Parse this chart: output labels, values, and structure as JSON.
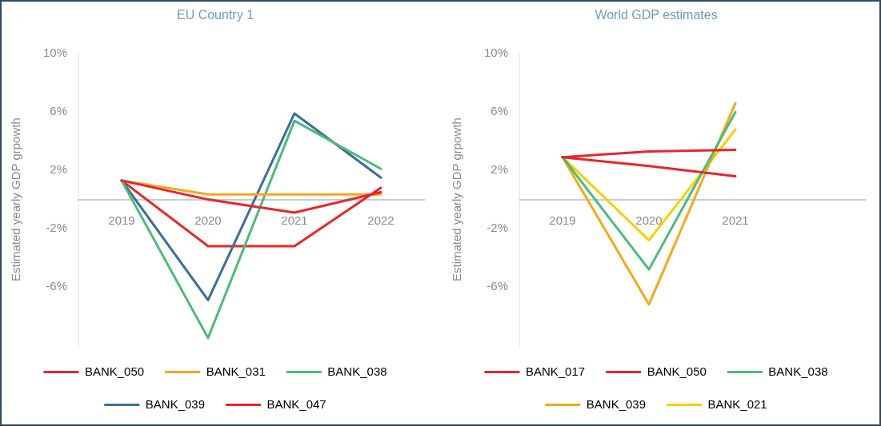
{
  "chart_data": [
    {
      "type": "line",
      "title": "EU Country 1",
      "ylabel": "Estimated yearly GDP grpowth",
      "categories": [
        "2019",
        "2020",
        "2021",
        "2022"
      ],
      "series": [
        {
          "name": "BANK_050",
          "color": "#e8262a",
          "values": [
            1.3,
            0,
            -0.9,
            0.5
          ]
        },
        {
          "name": "BANK_031",
          "color": "#f5a81c",
          "values": [
            1.3,
            0.35,
            0.35,
            0.35
          ]
        },
        {
          "name": "BANK_038",
          "color": "#4dbb7c",
          "values": [
            1.3,
            -9.5,
            5.4,
            2.1
          ]
        },
        {
          "name": "BANK_039",
          "color": "#3f6e95",
          "values": [
            1.3,
            -6.9,
            5.9,
            1.5
          ]
        },
        {
          "name": "BANK_047",
          "color": "#e8262a",
          "values": [
            1.3,
            -3.2,
            -3.2,
            0.8
          ]
        }
      ],
      "ylim": [
        -10,
        10
      ],
      "yticks": [
        {
          "value": 10,
          "label": "10%"
        },
        {
          "value": 6,
          "label": "6%"
        },
        {
          "value": 2,
          "label": "2%"
        },
        {
          "value": -2,
          "label": "-2%"
        },
        {
          "value": -6,
          "label": "-6%"
        }
      ],
      "grid": false,
      "legend": "bottom",
      "marker": "none",
      "line_style": "solid"
    },
    {
      "type": "line",
      "title": "World GDP estimates",
      "ylabel": "Estimated yearly GDP grpowth",
      "categories": [
        "2019",
        "2020",
        "2021",
        null
      ],
      "series": [
        {
          "name": "BANK_017",
          "color": "#e8262a",
          "values": [
            2.9,
            3.3,
            3.4,
            null
          ]
        },
        {
          "name": "BANK_050",
          "color": "#e8262a",
          "values": [
            2.9,
            2.3,
            1.6,
            null
          ]
        },
        {
          "name": "BANK_038",
          "color": "#4dbb7c",
          "values": [
            2.9,
            -4.8,
            6.0,
            null
          ]
        },
        {
          "name": "BANK_039",
          "color": "#f5a81c",
          "values": [
            2.9,
            -7.2,
            6.6,
            null
          ]
        },
        {
          "name": "BANK_021",
          "color": "#f8d000",
          "values": [
            2.9,
            -2.8,
            4.8,
            null
          ]
        }
      ],
      "ylim": [
        -10,
        10
      ],
      "yticks": [
        {
          "value": 10,
          "label": "10%"
        },
        {
          "value": 6,
          "label": "6%"
        },
        {
          "value": 2,
          "label": "2%"
        },
        {
          "value": -2,
          "label": "-2%"
        },
        {
          "value": -6,
          "label": "-6%"
        }
      ],
      "grid": false,
      "legend": "bottom",
      "marker": "none",
      "line_style": "solid"
    }
  ]
}
